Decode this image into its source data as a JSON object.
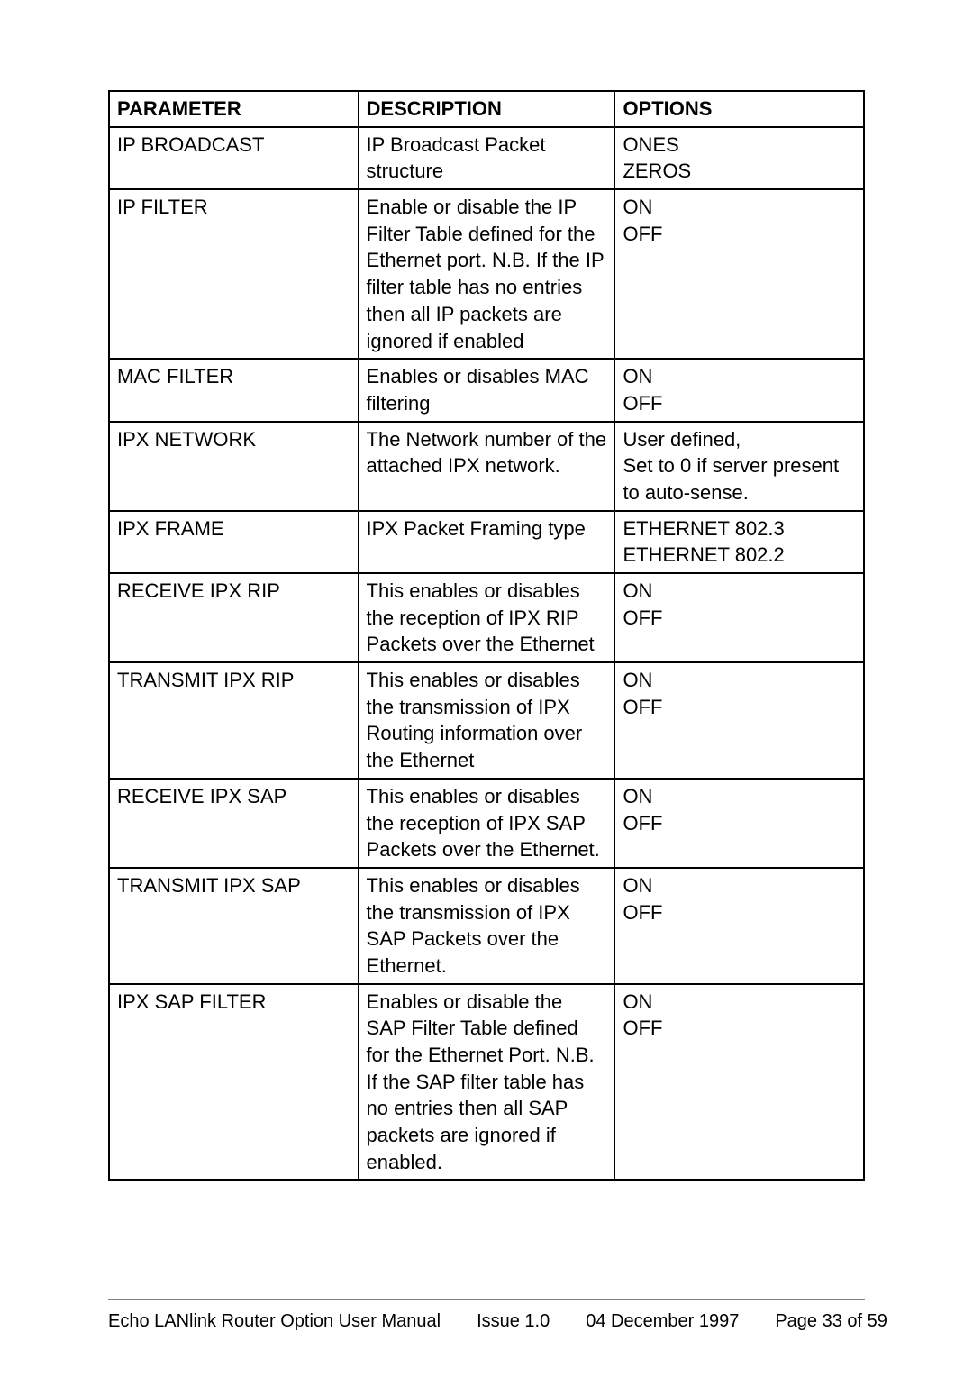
{
  "table": {
    "headers": [
      "PARAMETER",
      "DESCRIPTION",
      "OPTIONS"
    ],
    "rows": [
      {
        "param": "IP BROADCAST",
        "desc": "IP Broadcast Packet structure",
        "opts": "ONES\nZEROS"
      },
      {
        "param": "IP FILTER",
        "desc": "Enable or disable the IP Filter Table defined for the Ethernet port.  N.B.  If the IP filter table has no entries then all IP packets are ignored if enabled",
        "opts": "ON\nOFF"
      },
      {
        "param": "MAC FILTER",
        "desc": "Enables or disables MAC filtering",
        "opts": "ON\nOFF"
      },
      {
        "param": "IPX NETWORK",
        "desc": "The Network number of the attached IPX network.",
        "opts": "User defined,\nSet to 0 if server present to auto-sense."
      },
      {
        "param": "IPX FRAME",
        "desc": "IPX Packet Framing type",
        "opts": "ETHERNET 802.3\nETHERNET 802.2"
      },
      {
        "param": "RECEIVE IPX RIP",
        "desc": "This enables or disables the reception of IPX RIP Packets over the Ethernet",
        "opts": "ON\nOFF"
      },
      {
        "param": "TRANSMIT IPX RIP",
        "desc": "This enables or disables the transmission of IPX Routing information over the Ethernet",
        "opts": "ON\nOFF"
      },
      {
        "param": "RECEIVE IPX SAP",
        "desc": "This enables or disables the reception of IPX SAP Packets over the Ethernet.",
        "opts": "ON\nOFF"
      },
      {
        "param": "TRANSMIT IPX SAP",
        "desc": "This enables or disables the transmission of IPX SAP Packets over the Ethernet.",
        "opts": "ON\nOFF"
      },
      {
        "param": "IPX SAP FILTER",
        "desc": "Enables or disable the SAP Filter Table defined for the Ethernet Port.  N.B.  If the SAP filter table has no entries then all SAP packets are ignored if enabled.",
        "opts": "ON\nOFF"
      }
    ]
  },
  "footer": {
    "title": "Echo LANlink Router Option User Manual",
    "issue": "Issue 1.0",
    "date": "04 December 1997",
    "page": "Page 33 of 59"
  }
}
